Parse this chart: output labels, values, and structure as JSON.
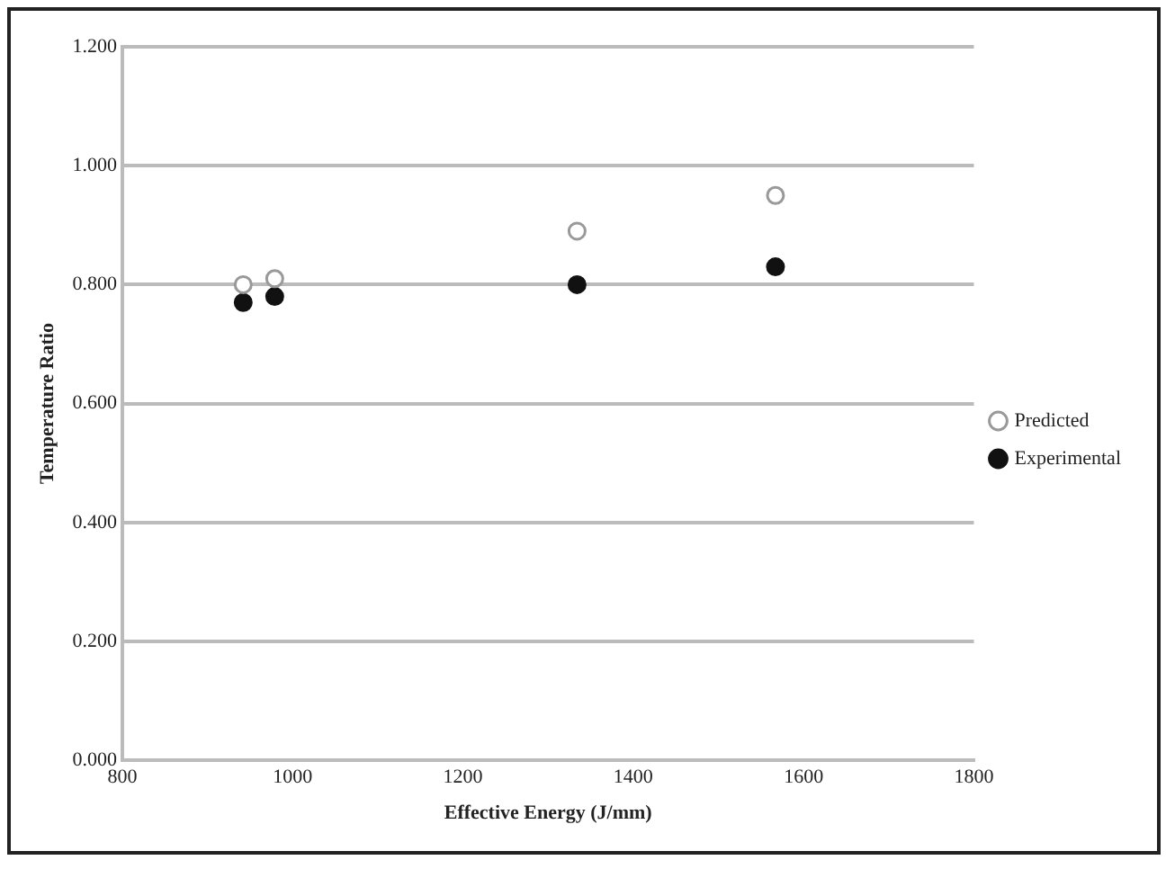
{
  "chart_data": {
    "type": "scatter",
    "xlabel": "Effective Energy (J/mm)",
    "ylabel": "Temperature Ratio",
    "xlim": [
      800,
      1800
    ],
    "xticks": [
      800,
      1000,
      1200,
      1400,
      1600,
      1800
    ],
    "ylim": [
      0,
      1.2
    ],
    "yticks": [
      {
        "value": 0,
        "label": "0.000"
      },
      {
        "value": 0.2,
        "label": "0.200"
      },
      {
        "value": 0.4,
        "label": "0.400"
      },
      {
        "value": 0.6,
        "label": "0.600"
      },
      {
        "value": 0.8,
        "label": "0.800"
      },
      {
        "value": 1.0,
        "label": "1.000"
      },
      {
        "value": 1.2,
        "label": "1.200"
      }
    ],
    "x": [
      942,
      979,
      1334,
      1567
    ],
    "series": [
      {
        "name": "Predicted",
        "color": "#999999",
        "values": [
          0.8,
          0.81,
          0.89,
          0.95
        ]
      },
      {
        "name": "Experimental",
        "color": "#111111",
        "values": [
          0.77,
          0.78,
          0.8,
          0.83
        ]
      }
    ],
    "grid": "y",
    "legend": "right",
    "marker": "circle"
  }
}
